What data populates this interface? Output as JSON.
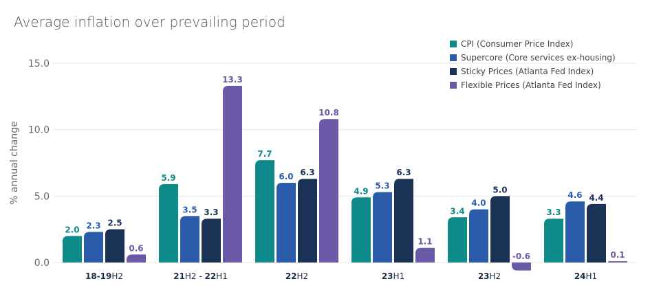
{
  "chart_data": {
    "type": "bar",
    "title": "Average inflation over prevailing period",
    "ylabel": "% annual change",
    "xlabel": "",
    "ylim": [
      0,
      15
    ],
    "yticks": [
      "0.0",
      "5.0",
      "10.0",
      "15.0"
    ],
    "grid": true,
    "legend_position": "top-right",
    "categories": [
      [
        {
          "text": "18-19",
          "bold": true
        },
        {
          "text": "H2",
          "bold": false
        }
      ],
      [
        {
          "text": "21",
          "bold": true
        },
        {
          "text": "H2 - ",
          "bold": false
        },
        {
          "text": "22",
          "bold": true
        },
        {
          "text": "H1",
          "bold": false
        }
      ],
      [
        {
          "text": "22",
          "bold": true
        },
        {
          "text": "H2",
          "bold": false
        }
      ],
      [
        {
          "text": "23",
          "bold": true
        },
        {
          "text": "H1",
          "bold": false
        }
      ],
      [
        {
          "text": "23",
          "bold": true
        },
        {
          "text": "H2",
          "bold": false
        }
      ],
      [
        {
          "text": "24",
          "bold": true
        },
        {
          "text": "H1",
          "bold": false
        }
      ]
    ],
    "series": [
      {
        "name": "CPI (Consumer Price Index)",
        "color": "#0e8a8a",
        "values": [
          2.0,
          5.9,
          7.7,
          4.9,
          3.4,
          3.3
        ]
      },
      {
        "name": "Supercore (Core services ex-housing)",
        "color": "#2a5caa",
        "values": [
          2.3,
          3.5,
          6.0,
          5.3,
          4.0,
          4.6
        ]
      },
      {
        "name": "Sticky Prices (Atlanta Fed Index)",
        "color": "#1b3257",
        "values": [
          2.5,
          3.3,
          6.3,
          6.3,
          5.0,
          4.4
        ]
      },
      {
        "name": "Flexible Prices (Atlanta Fed Index)",
        "color": "#6a5aa8",
        "values": [
          0.6,
          13.3,
          10.8,
          1.1,
          -0.6,
          0.1
        ]
      }
    ]
  }
}
